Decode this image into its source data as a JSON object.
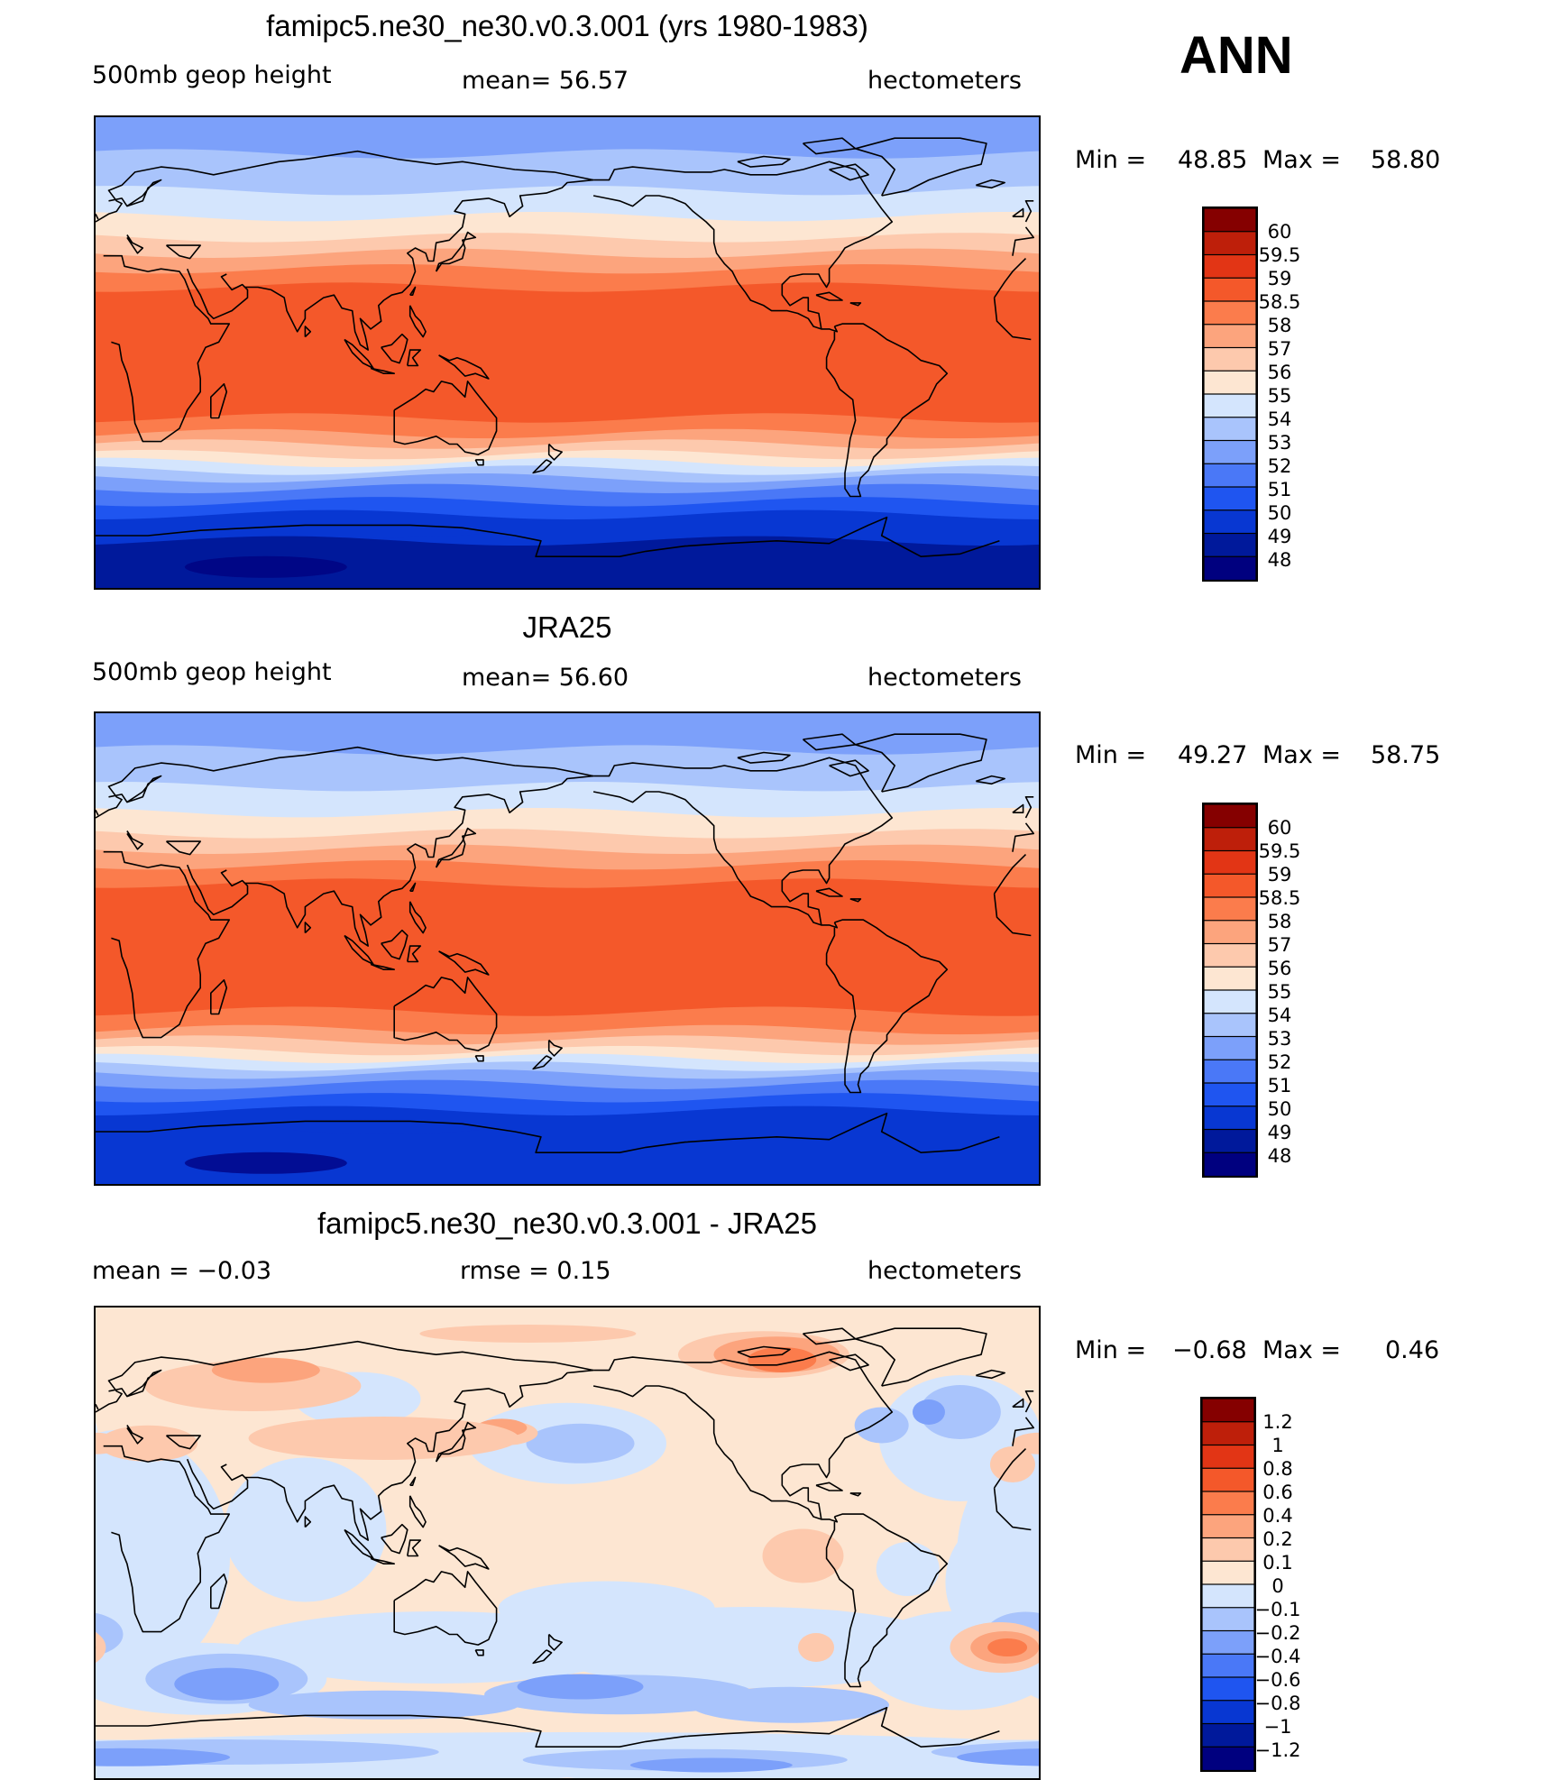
{
  "season": "ANN",
  "colors": {
    "abs_levels": [
      "#fbfbfb"
    ],
    "abs_palette": [
      "#00007f",
      "#00199b",
      "#0837d2",
      "#1f55f0",
      "#4a78f7",
      "#7ca0fa",
      "#a9c4fc",
      "#d4e5fd",
      "#fde6d2",
      "#fdc9ad",
      "#fca47d",
      "#fb7c4c",
      "#f4582a",
      "#e23515",
      "#be1f0a",
      "#850000"
    ],
    "diff_palette": [
      "#00007f",
      "#00199b",
      "#0837d2",
      "#1f55f0",
      "#4a78f7",
      "#7ca0fa",
      "#a9c4fc",
      "#d4e5fd",
      "#fde6d2",
      "#fdc9ad",
      "#fca47d",
      "#fb7c4c",
      "#f4582a",
      "#e23515",
      "#be1f0a",
      "#850000"
    ],
    "coast": "#000000"
  },
  "panels": [
    {
      "title": "famipc5.ne30_ne30.v0.3.001 (yrs 1980-1983)",
      "left": "500mb  geop  height",
      "center": "mean=   56.57",
      "right": "hectometers",
      "min_label": "Min  =",
      "min_value": "48.85",
      "max_label": "Max  =",
      "max_value": "58.80",
      "field": "abs",
      "bands_deg": [
        {
          "lat": 90,
          "level": 5
        },
        {
          "lat": 76,
          "level": 6
        },
        {
          "lat": 62,
          "level": 7
        },
        {
          "lat": 52,
          "level": 8
        },
        {
          "lat": 44,
          "level": 9
        },
        {
          "lat": 38,
          "level": 10
        },
        {
          "lat": 32,
          "level": 11
        },
        {
          "lat": 25,
          "level": 12
        },
        {
          "lat": -25,
          "level": 11
        },
        {
          "lat": -31,
          "level": 10
        },
        {
          "lat": -35,
          "level": 9
        },
        {
          "lat": -39,
          "level": 8
        },
        {
          "lat": -42,
          "level": 7
        },
        {
          "lat": -45,
          "level": 6
        },
        {
          "lat": -48,
          "level": 5
        },
        {
          "lat": -52,
          "level": 4
        },
        {
          "lat": -57,
          "level": 3
        },
        {
          "lat": -62,
          "level": 2
        },
        {
          "lat": -72,
          "level": 1
        }
      ],
      "legend": [
        "60",
        "59.5",
        "59",
        "58.5",
        "58",
        "57",
        "56",
        "55",
        "54",
        "53",
        "52",
        "51",
        "50",
        "49",
        "48"
      ]
    },
    {
      "title": "JRA25",
      "left": "500mb  geop  height",
      "center": "mean=   56.60",
      "right": "hectometers",
      "min_label": "Min  =",
      "min_value": "49.27",
      "max_label": "Max  =",
      "max_value": "58.75",
      "field": "abs",
      "bands_deg": [
        {
          "lat": 90,
          "level": 5
        },
        {
          "lat": 76,
          "level": 6
        },
        {
          "lat": 62,
          "level": 7
        },
        {
          "lat": 52,
          "level": 8
        },
        {
          "lat": 44,
          "level": 9
        },
        {
          "lat": 38,
          "level": 10
        },
        {
          "lat": 32,
          "level": 11
        },
        {
          "lat": 25,
          "level": 12
        },
        {
          "lat": -24,
          "level": 11
        },
        {
          "lat": -31,
          "level": 10
        },
        {
          "lat": -35,
          "level": 9
        },
        {
          "lat": -39,
          "level": 8
        },
        {
          "lat": -42,
          "level": 7
        },
        {
          "lat": -45,
          "level": 6
        },
        {
          "lat": -48,
          "level": 5
        },
        {
          "lat": -52,
          "level": 4
        },
        {
          "lat": -57,
          "level": 3
        },
        {
          "lat": -62,
          "level": 2
        }
      ],
      "legend": [
        "60",
        "59.5",
        "59",
        "58.5",
        "58",
        "57",
        "56",
        "55",
        "54",
        "53",
        "52",
        "51",
        "50",
        "49",
        "48"
      ]
    },
    {
      "title": "famipc5.ne30_ne30.v0.3.001 - JRA25",
      "left": "mean  =    −0.03",
      "center": "rmse  =     0.15",
      "right": "hectometers",
      "min_label": "Min  =",
      "min_value": "−0.68",
      "max_label": "Max  =",
      "max_value": "0.46",
      "field": "diff",
      "legend": [
        "1.2",
        "1",
        "0.8",
        "0.6",
        "0.4",
        "0.2",
        "0.1",
        "0",
        "−0.1",
        "−0.2",
        "−0.4",
        "−0.6",
        "−0.8",
        "−1",
        "−1.2"
      ]
    }
  ]
}
